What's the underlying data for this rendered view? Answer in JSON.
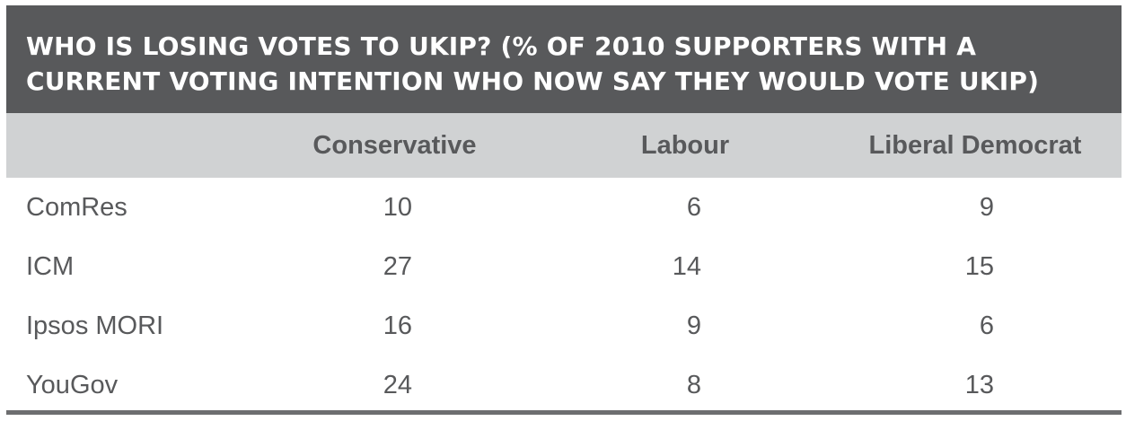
{
  "chart_data": {
    "type": "table",
    "title": "WHO IS LOSING VOTES TO UKIP? (% OF 2010 SUPPORTERS WITH A CURRENT VOTING INTENTION WHO NOW SAY THEY WOULD VOTE UKIP)",
    "columns": [
      "Conservative",
      "Labour",
      "Liberal Democrat"
    ],
    "rows": [
      {
        "label": "ComRes",
        "values": [
          "10",
          "6",
          "9"
        ]
      },
      {
        "label": "ICM",
        "values": [
          "27",
          "14",
          "15"
        ]
      },
      {
        "label": "Ipsos MORI",
        "values": [
          "16",
          "9",
          "6"
        ]
      },
      {
        "label": "YouGov",
        "values": [
          "24",
          "8",
          "13"
        ]
      }
    ]
  },
  "colors": {
    "title_background": "#58595b",
    "header_background": "#d0d2d3",
    "text": "#58595b",
    "rule": "#6d6e70"
  }
}
